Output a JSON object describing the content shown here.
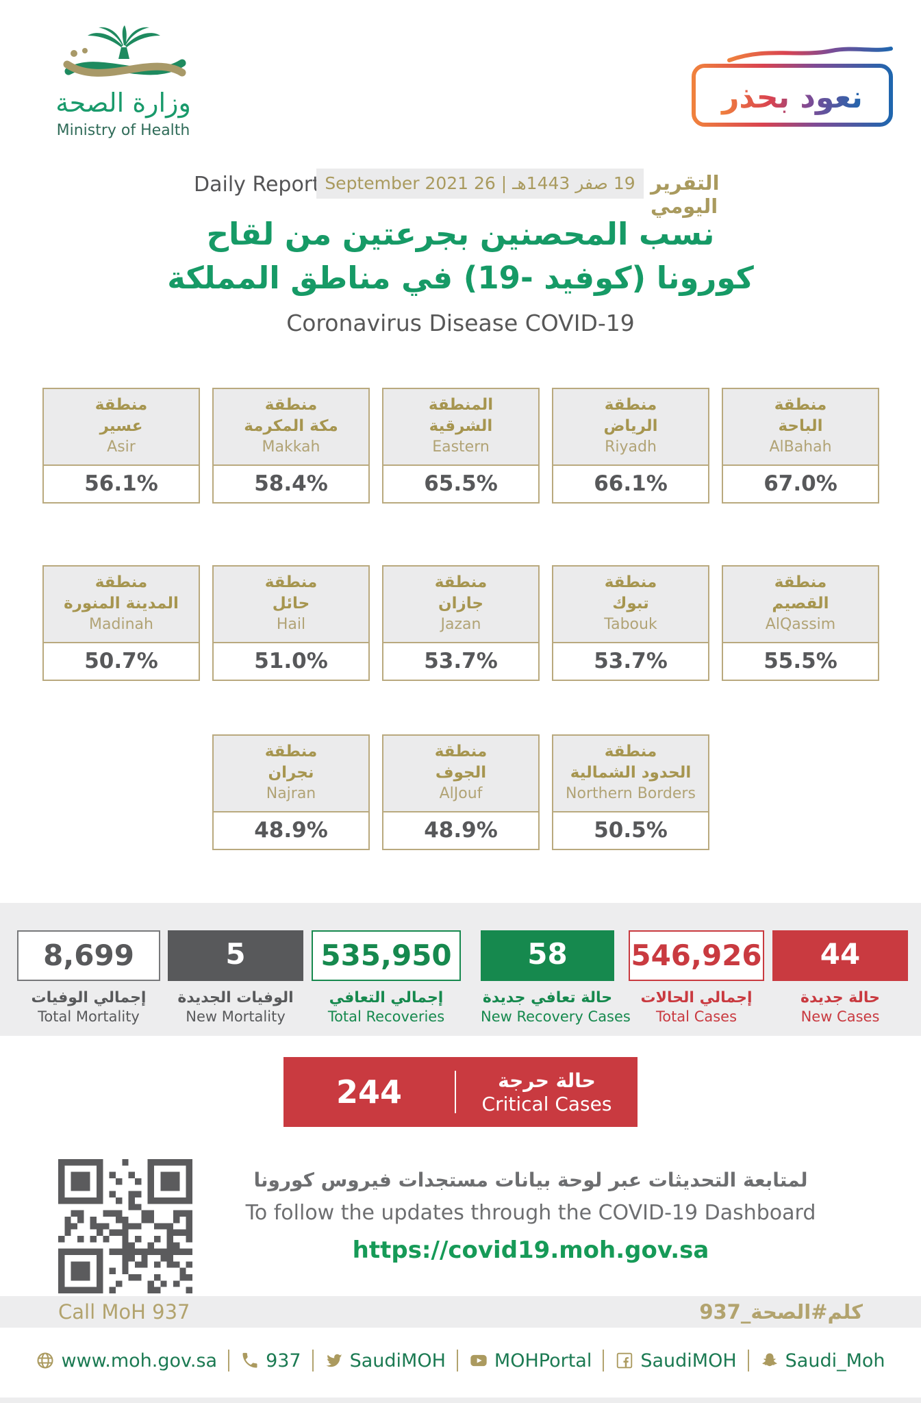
{
  "colors": {
    "brand_green": "#169a66",
    "url_green": "#169a57",
    "stat_green": "#16894e",
    "gold": "#a99a5e",
    "card_border_gold": "#b9a97e",
    "dark_gray": "#58595b",
    "red": "#c93a40",
    "band_gray": "#ededee",
    "footer_green": "#1b7a52"
  },
  "header": {
    "logo": {
      "arabic": "وزارة الصحة",
      "english": "Ministry of Health"
    },
    "badge": {
      "text": "نعود بحذر"
    },
    "report": {
      "label_en": "Daily Report",
      "date": "19 صفر 1443هـ | 26 September 2021",
      "label_ar": "التقرير اليومي"
    },
    "title_ar_line1": "نسب المحصنين بجرعتين من لقاح",
    "title_ar_line2": "كورونا (كوفيد -19) في مناطق المملكة",
    "title_en": "Coronavirus Disease COVID-19"
  },
  "regions": {
    "row1": [
      {
        "ar1": "منطقة",
        "ar2": "عسير",
        "en": "Asir",
        "value": "56.1%"
      },
      {
        "ar1": "منطقة",
        "ar2": "مكة المكرمة",
        "en": "Makkah",
        "value": "58.4%"
      },
      {
        "ar1": "المنطقة",
        "ar2": "الشرقية",
        "en": "Eastern",
        "value": "65.5%"
      },
      {
        "ar1": "منطقة",
        "ar2": "الرياض",
        "en": "Riyadh",
        "value": "66.1%"
      },
      {
        "ar1": "منطقة",
        "ar2": "الباحة",
        "en": "AlBahah",
        "value": "67.0%"
      }
    ],
    "row2": [
      {
        "ar1": "منطقة",
        "ar2": "المدينة المنورة",
        "en": "Madinah",
        "value": "50.7%"
      },
      {
        "ar1": "منطقة",
        "ar2": "حائل",
        "en": "Hail",
        "value": "51.0%"
      },
      {
        "ar1": "منطقة",
        "ar2": "جازان",
        "en": "Jazan",
        "value": "53.7%"
      },
      {
        "ar1": "منطقة",
        "ar2": "تبوك",
        "en": "Tabouk",
        "value": "53.7%"
      },
      {
        "ar1": "منطقة",
        "ar2": "القصيم",
        "en": "AlQassim",
        "value": "55.5%"
      }
    ],
    "row3": [
      {
        "ar1": "منطقة",
        "ar2": "نجران",
        "en": "Najran",
        "value": "48.9%"
      },
      {
        "ar1": "منطقة",
        "ar2": "الجوف",
        "en": "AlJouf",
        "value": "48.9%"
      },
      {
        "ar1": "منطقة",
        "ar2": "الحدود الشمالية",
        "en": "Northern Borders",
        "value": "50.5%"
      }
    ]
  },
  "stats": [
    {
      "value": "8,699",
      "ar": "إجمالي الوفيات",
      "en": "Total Mortality"
    },
    {
      "value": "5",
      "ar": "الوفيات الجديدة",
      "en": "New Mortality"
    },
    {
      "value": "535,950",
      "ar": "إجمالي التعافي",
      "en": "Total Recoveries"
    },
    {
      "value": "58",
      "ar": "حالة تعافي جديدة",
      "en": "New Recovery Cases"
    },
    {
      "value": "546,926",
      "ar": "إجمالي الحالات",
      "en": "Total Cases"
    },
    {
      "value": "44",
      "ar": "حالة جديدة",
      "en": "New Cases"
    }
  ],
  "critical": {
    "value": "244",
    "ar": "حالة حرجة",
    "en": "Critical Cases"
  },
  "dashboard": {
    "ar": "لمتابعة التحديثات عبر لوحة بيانات مستجدات فيروس كورونا",
    "en": "To follow the updates through the COVID-19 Dashboard",
    "url": "https://covid19.moh.gov.sa"
  },
  "footer": {
    "call_en": "Call MoH 937",
    "hashtag_ar": "كلم#الصحة_937",
    "links": [
      {
        "icon": "globe-icon",
        "text": "www.moh.gov.sa"
      },
      {
        "icon": "phone-icon",
        "text": "937"
      },
      {
        "icon": "twitter-icon",
        "text": "SaudiMOH"
      },
      {
        "icon": "youtube-icon",
        "text": "MOHPortal"
      },
      {
        "icon": "facebook-icon",
        "text": "SaudiMOH"
      },
      {
        "icon": "snapchat-icon",
        "text": "Saudi_Moh"
      }
    ]
  }
}
